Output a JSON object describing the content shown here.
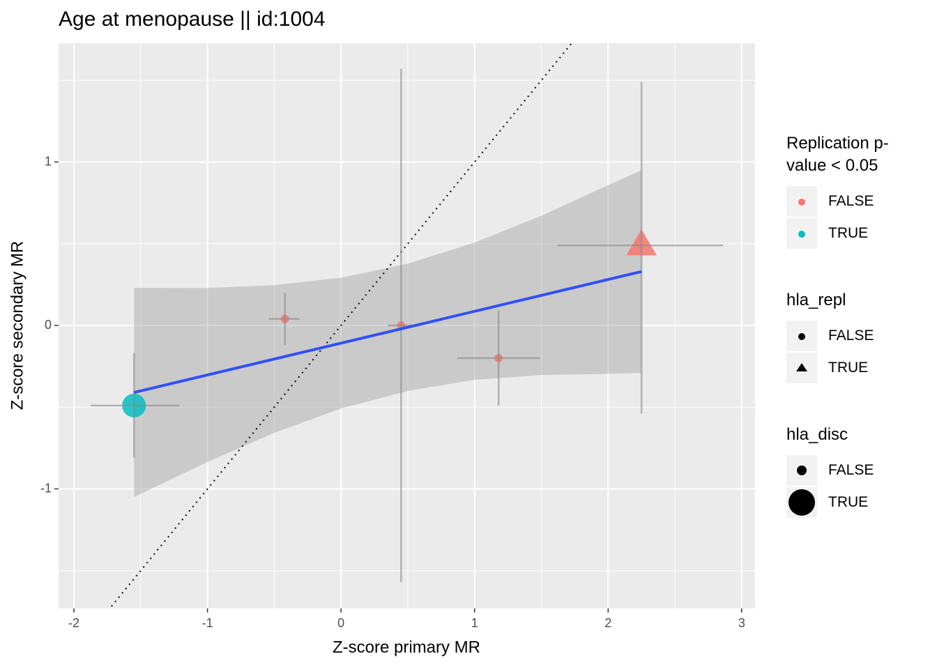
{
  "chart_data": {
    "type": "scatter",
    "title": "Age at menopause || id:1004",
    "x_label": "Z-score primary MR",
    "y_label": "Z-score secondary MR",
    "xlim": [
      -2.115,
      3.1
    ],
    "ylim": [
      -1.731,
      1.727
    ],
    "xticks": [
      -2,
      -1,
      0,
      1,
      2,
      3
    ],
    "yticks": [
      -1,
      0,
      1
    ],
    "grid": true,
    "minor_grid": true,
    "points": {
      "x": [
        -1.55,
        -0.42,
        0.45,
        1.18,
        2.25
      ],
      "y": [
        -0.49,
        0.04,
        0.0,
        -0.2,
        0.49
      ],
      "x_low": [
        -1.876,
        -0.54,
        0.35,
        0.87,
        1.62
      ],
      "x_high": [
        -1.21,
        -0.31,
        0.55,
        1.49,
        2.86
      ],
      "y_low": [
        -0.81,
        -0.12,
        -1.57,
        -0.49,
        -0.54
      ],
      "y_high": [
        -0.17,
        0.2,
        1.57,
        0.09,
        1.49
      ],
      "replication": [
        "TRUE",
        "FALSE",
        "FALSE",
        "FALSE",
        "FALSE"
      ],
      "hla_repl": [
        "FALSE",
        "FALSE",
        "FALSE",
        "FALSE",
        "TRUE"
      ],
      "hla_disc": [
        "TRUE",
        "FALSE",
        "FALSE",
        "FALSE",
        "TRUE"
      ]
    },
    "fit": {
      "x": [
        -1.55,
        2.25
      ],
      "y": [
        -0.41,
        0.33
      ],
      "color": "#3050f8"
    },
    "band": {
      "x": [
        -1.55,
        -1,
        -0.5,
        0,
        0.5,
        1,
        1.5,
        2,
        2.25
      ],
      "lower": [
        -1.05,
        -0.835,
        -0.657,
        -0.508,
        -0.4,
        -0.333,
        -0.303,
        -0.296,
        -0.29
      ],
      "upper": [
        0.23,
        0.229,
        0.247,
        0.292,
        0.378,
        0.507,
        0.671,
        0.858,
        0.95
      ]
    },
    "reference_line": {
      "slope": 1,
      "intercept": 0
    },
    "legend_position": "right",
    "legends": [
      {
        "title": "Replication p-value < 0.05",
        "field": "replication",
        "keys": [
          "FALSE",
          "TRUE"
        ],
        "colors": [
          "#f8766d",
          "#00bfc4"
        ]
      },
      {
        "title": "hla_repl",
        "field": "hla_repl",
        "keys": [
          "FALSE",
          "TRUE"
        ],
        "shapes": [
          "circle",
          "triangle"
        ]
      },
      {
        "title": "hla_disc",
        "field": "hla_disc",
        "keys": [
          "FALSE",
          "TRUE"
        ],
        "sizes": [
          "small",
          "large"
        ]
      }
    ]
  }
}
